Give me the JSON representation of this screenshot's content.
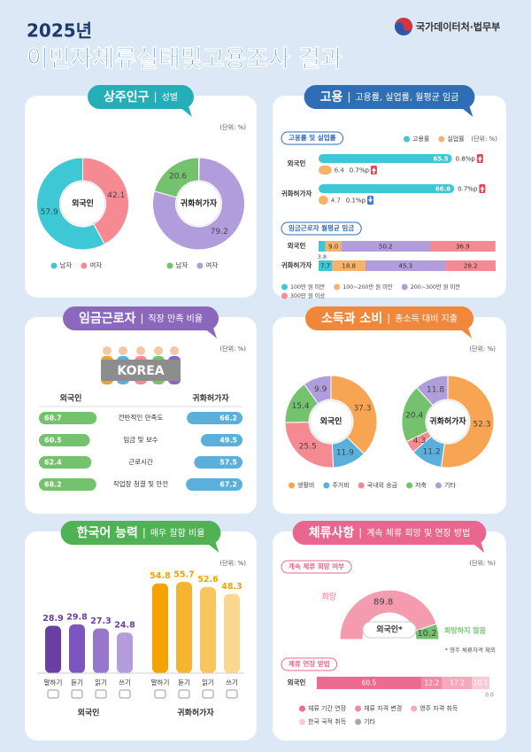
{
  "header": {
    "year": "2025년",
    "title": "이민자체류실태및고용조사 결과",
    "org": "국가데이터처·법무부"
  },
  "panels": [
    {
      "type": "donut_pair",
      "title": "상주인구",
      "subtitle": "성별",
      "unit": "(단위: %)",
      "color": "#23aeb8",
      "direction": "ccw",
      "charts": [
        {
          "center": "외국인",
          "categories": [
            "남자",
            "여자"
          ],
          "values": [
            57.9,
            42.1
          ],
          "colors": [
            "#3ec7d4",
            "#f58a93"
          ]
        },
        {
          "center": "귀화허가자",
          "categories": [
            "남자",
            "여자"
          ],
          "values": [
            20.6,
            79.2
          ],
          "colors": [
            "#74c26e",
            "#b29ddc"
          ]
        }
      ]
    },
    {
      "type": "employment",
      "title": "고용",
      "subtitle": "고용률, 실업률, 월평균 임금",
      "color": "#2f6db5",
      "rate": {
        "title": "고용률 및 실업률",
        "unit": "(단위: %)",
        "categories": [
          "외국인",
          "귀화허가자"
        ],
        "series": [
          {
            "name": "고용률",
            "color": "#3ec7d4",
            "values": [
              65.5,
              66.6
            ],
            "change_labels": [
              "0.8%p",
              "0.7%p"
            ],
            "change_directions": [
              "up",
              "up"
            ]
          },
          {
            "name": "실업률",
            "color": "#f7b26a",
            "values": [
              6.4,
              4.7
            ],
            "change_labels": [
              "0.7%p",
              "0.1%p"
            ],
            "change_directions": [
              "up",
              "down"
            ]
          }
        ]
      },
      "wage": {
        "title": "임금근로자 월평균 임금",
        "categories": [
          "외국인",
          "귀화허가자"
        ],
        "series": [
          {
            "name": "100만 원 미만",
            "color": "#3ec7d4",
            "values": [
              3.8,
              7.7
            ]
          },
          {
            "name": "100~200만 원 미만",
            "color": "#f7b26a",
            "values": [
              9.0,
              18.8
            ],
            "value_labels": [
              "9.0",
              "18.8"
            ]
          },
          {
            "name": "200~300만 원 미만",
            "color": "#b29ddc",
            "values": [
              50.2,
              45.3
            ]
          },
          {
            "name": "300만 원 이상",
            "color": "#f58a93",
            "values": [
              36.9,
              28.2
            ]
          }
        ]
      }
    },
    {
      "type": "satisfaction",
      "title": "임금근로자",
      "subtitle": "직장 만족 비율",
      "unit": "(단위: %)",
      "color": "#8b68bd",
      "banner": "KOREA",
      "categories": [
        "전반적인 만족도",
        "임금 및 보수",
        "근로시간",
        "작업장 청결 및 안전"
      ],
      "series": [
        {
          "name": "외국인",
          "color": "#74c26e",
          "values": [
            68.7,
            60.5,
            62.4,
            68.2
          ]
        },
        {
          "name": "귀화허가자",
          "color": "#5ab0da",
          "values": [
            66.2,
            49.5,
            57.5,
            67.2
          ]
        }
      ]
    },
    {
      "type": "donut_pair_shared",
      "title": "소득과 소비",
      "subtitle": "총소득 대비 지출",
      "unit": "(단위: %)",
      "color": "#f0873a",
      "direction": "cw",
      "categories": [
        "생활비",
        "주거비",
        "국내외 송금",
        "저축",
        "기타"
      ],
      "colors": [
        "#f7a552",
        "#5ab0da",
        "#f58a93",
        "#74c26e",
        "#b29ddc"
      ],
      "charts": [
        {
          "center": "외국인",
          "values": [
            37.3,
            11.9,
            25.5,
            15.4,
            9.9
          ]
        },
        {
          "center": "귀화허가자",
          "values": [
            52.3,
            11.2,
            4.3,
            20.4,
            11.8
          ]
        }
      ]
    },
    {
      "type": "columns",
      "title": "한국어 능력",
      "subtitle": "매우 잘함 비율",
      "unit": "(단위: %)",
      "color": "#4fb253",
      "categories": [
        "말하기",
        "듣기",
        "읽기",
        "쓰기"
      ],
      "series": [
        {
          "name": "외국인",
          "colors": [
            "#6a3fa3",
            "#7d55bf",
            "#9577cc",
            "#b39ddb"
          ],
          "values": [
            28.9,
            29.8,
            27.3,
            24.8
          ]
        },
        {
          "name": "귀화허가자",
          "colors": [
            "#f4a300",
            "#f6b531",
            "#f8c65e",
            "#fad88f"
          ],
          "values": [
            54.8,
            55.7,
            52.6,
            48.3
          ]
        }
      ]
    },
    {
      "type": "stay",
      "title": "체류사항",
      "subtitle": "계속 체류 희망 및 연장 방법",
      "unit": "(단위: %)",
      "color": "#e9678f",
      "wish": {
        "title": "계속 체류 희망 여부",
        "center": "외국인*",
        "note": "* 영주 체류자격 제외",
        "categories": [
          "희망",
          "희망하지 않음"
        ],
        "values": [
          89.8,
          10.2
        ],
        "colors": [
          "#f59bb0",
          "#74c26e"
        ]
      },
      "extension": {
        "title": "체류 연장 방법",
        "categories": [
          "외국인"
        ],
        "series": [
          {
            "name": "체류 기간 연장",
            "color": "#ec6b8e",
            "values": [
              60.5
            ]
          },
          {
            "name": "체류 자격 변경",
            "color": "#f28aa6",
            "values": [
              12.2
            ]
          },
          {
            "name": "영주 자격 취득",
            "color": "#f5a9bc",
            "values": [
              17.2
            ]
          },
          {
            "name": "한국 국적 취득",
            "color": "#f9c9d5",
            "values": [
              10.1
            ]
          },
          {
            "name": "기타",
            "color": "#a8a8a8",
            "values": [
              0.0
            ],
            "value_labels": [
              "0.0"
            ]
          }
        ]
      }
    }
  ]
}
